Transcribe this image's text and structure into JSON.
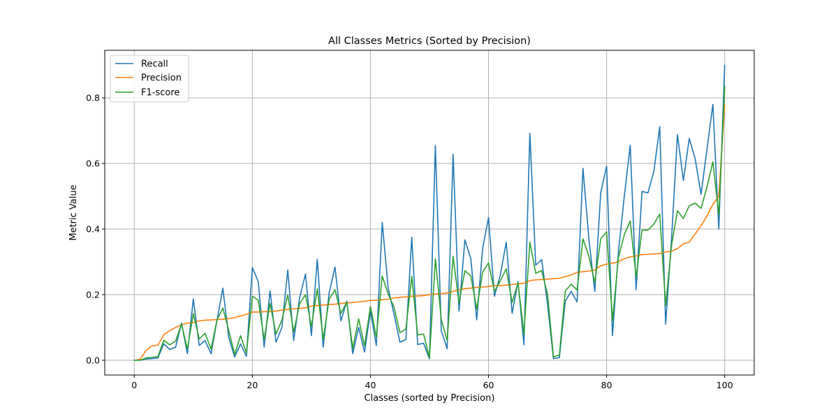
{
  "chart_data": {
    "type": "line",
    "title": "All Classes Metrics (Sorted by Precision)",
    "xlabel": "Classes (sorted by Precision)",
    "ylabel": "Metric Value",
    "xlim": [
      -5,
      105
    ],
    "ylim": [
      -0.045,
      0.945
    ],
    "xticks": [
      0,
      20,
      40,
      60,
      80,
      100
    ],
    "yticks": [
      0.0,
      0.2,
      0.4,
      0.6,
      0.8
    ],
    "xtick_labels": [
      "0",
      "20",
      "40",
      "60",
      "80",
      "100"
    ],
    "ytick_labels": [
      "0.0",
      "0.2",
      "0.4",
      "0.6",
      "0.8"
    ],
    "grid": true,
    "legend_position": "top-left",
    "x": [
      0,
      1,
      2,
      3,
      4,
      5,
      6,
      7,
      8,
      9,
      10,
      11,
      12,
      13,
      14,
      15,
      16,
      17,
      18,
      19,
      20,
      21,
      22,
      23,
      24,
      25,
      26,
      27,
      28,
      29,
      30,
      31,
      32,
      33,
      34,
      35,
      36,
      37,
      38,
      39,
      40,
      41,
      42,
      43,
      44,
      45,
      46,
      47,
      48,
      49,
      50,
      51,
      52,
      53,
      54,
      55,
      56,
      57,
      58,
      59,
      60,
      61,
      62,
      63,
      64,
      65,
      66,
      67,
      68,
      69,
      70,
      71,
      72,
      73,
      74,
      75,
      76,
      77,
      78,
      79,
      80,
      81,
      82,
      83,
      84,
      85,
      86,
      87,
      88,
      89,
      90,
      91,
      92,
      93,
      94,
      95,
      96,
      97,
      98,
      99,
      100
    ],
    "series": [
      {
        "name": "Recall",
        "color": "#1f77b4",
        "values": [
          0.0,
          0.0,
          0.004,
          0.005,
          0.007,
          0.05,
          0.033,
          0.04,
          0.113,
          0.02,
          0.187,
          0.045,
          0.06,
          0.02,
          0.12,
          0.22,
          0.07,
          0.01,
          0.05,
          0.012,
          0.283,
          0.24,
          0.04,
          0.212,
          0.055,
          0.1,
          0.275,
          0.06,
          0.19,
          0.263,
          0.075,
          0.308,
          0.04,
          0.205,
          0.284,
          0.12,
          0.18,
          0.02,
          0.1,
          0.025,
          0.15,
          0.045,
          0.42,
          0.22,
          0.14,
          0.055,
          0.063,
          0.375,
          0.048,
          0.052,
          0.004,
          0.655,
          0.09,
          0.035,
          0.628,
          0.15,
          0.367,
          0.31,
          0.123,
          0.34,
          0.435,
          0.195,
          0.26,
          0.36,
          0.143,
          0.24,
          0.047,
          0.692,
          0.29,
          0.307,
          0.17,
          0.005,
          0.008,
          0.18,
          0.21,
          0.178,
          0.585,
          0.37,
          0.21,
          0.51,
          0.592,
          0.075,
          0.33,
          0.5,
          0.655,
          0.215,
          0.515,
          0.51,
          0.575,
          0.712,
          0.11,
          0.37,
          0.688,
          0.548,
          0.676,
          0.614,
          0.506,
          0.643,
          0.78,
          0.4,
          0.9
        ]
      },
      {
        "name": "Precision",
        "color": "#ff7f0e",
        "values": [
          0.0,
          0.003,
          0.03,
          0.044,
          0.046,
          0.078,
          0.09,
          0.1,
          0.108,
          0.113,
          0.115,
          0.12,
          0.122,
          0.123,
          0.124,
          0.125,
          0.127,
          0.13,
          0.135,
          0.14,
          0.147,
          0.147,
          0.148,
          0.148,
          0.15,
          0.153,
          0.155,
          0.157,
          0.158,
          0.16,
          0.165,
          0.167,
          0.168,
          0.17,
          0.171,
          0.173,
          0.175,
          0.176,
          0.178,
          0.18,
          0.182,
          0.183,
          0.185,
          0.186,
          0.19,
          0.192,
          0.193,
          0.195,
          0.196,
          0.197,
          0.2,
          0.202,
          0.203,
          0.205,
          0.21,
          0.215,
          0.218,
          0.22,
          0.222,
          0.223,
          0.225,
          0.227,
          0.228,
          0.229,
          0.231,
          0.233,
          0.235,
          0.243,
          0.245,
          0.246,
          0.247,
          0.249,
          0.25,
          0.255,
          0.26,
          0.268,
          0.27,
          0.272,
          0.275,
          0.288,
          0.293,
          0.296,
          0.3,
          0.31,
          0.315,
          0.318,
          0.322,
          0.323,
          0.324,
          0.325,
          0.33,
          0.333,
          0.34,
          0.355,
          0.36,
          0.385,
          0.41,
          0.44,
          0.475,
          0.5,
          0.78
        ]
      },
      {
        "name": "F1-score",
        "color": "#2ca02c",
        "values": [
          0.0,
          0.0,
          0.007,
          0.009,
          0.011,
          0.061,
          0.047,
          0.058,
          0.11,
          0.034,
          0.142,
          0.065,
          0.082,
          0.034,
          0.122,
          0.159,
          0.091,
          0.018,
          0.075,
          0.022,
          0.195,
          0.183,
          0.064,
          0.174,
          0.08,
          0.122,
          0.199,
          0.086,
          0.172,
          0.2,
          0.103,
          0.218,
          0.064,
          0.186,
          0.215,
          0.143,
          0.177,
          0.036,
          0.126,
          0.044,
          0.164,
          0.07,
          0.257,
          0.202,
          0.162,
          0.084,
          0.095,
          0.256,
          0.077,
          0.08,
          0.008,
          0.309,
          0.124,
          0.06,
          0.317,
          0.175,
          0.273,
          0.257,
          0.156,
          0.268,
          0.297,
          0.21,
          0.242,
          0.279,
          0.176,
          0.236,
          0.081,
          0.36,
          0.265,
          0.273,
          0.201,
          0.01,
          0.016,
          0.211,
          0.232,
          0.214,
          0.37,
          0.317,
          0.237,
          0.37,
          0.392,
          0.121,
          0.313,
          0.383,
          0.425,
          0.253,
          0.397,
          0.397,
          0.415,
          0.446,
          0.166,
          0.35,
          0.456,
          0.432,
          0.471,
          0.479,
          0.463,
          0.528,
          0.605,
          0.444,
          0.835
        ]
      }
    ]
  }
}
